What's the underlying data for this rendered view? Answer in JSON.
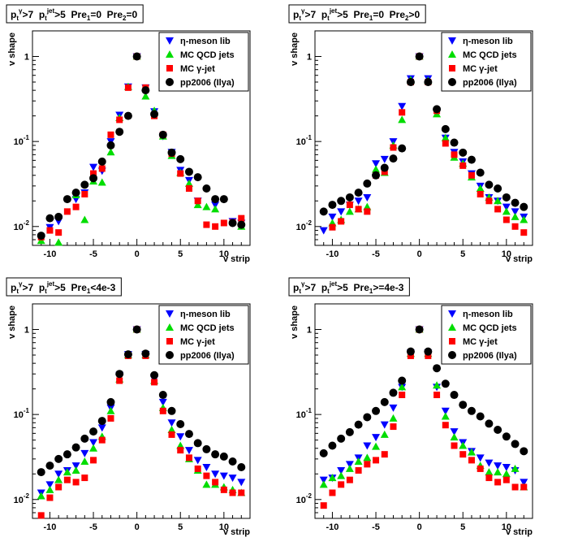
{
  "legend": {
    "entries": [
      {
        "key": "eta",
        "prefix": "η",
        "text": "-meson lib",
        "color": "#0000ff",
        "marker": "triangle-down"
      },
      {
        "key": "qcd",
        "prefix": "",
        "text": "MC QCD jets",
        "color": "#00dd00",
        "marker": "triangle-up"
      },
      {
        "key": "gam",
        "prefix": "MC ",
        "text": "γ-jet",
        "color": "#ff0000",
        "marker": "square"
      },
      {
        "key": "pp",
        "prefix": "",
        "text": "pp2006 (Ilya)",
        "color": "#000000",
        "marker": "circle"
      }
    ]
  },
  "chart_data": [
    {
      "type": "scatter",
      "title": "p_t^γ>7  p_t^jet>5  Pre_1=0  Pre_2=0",
      "xlabel": "v strip",
      "ylabel": "v shape",
      "yscale": "log",
      "xlim": [
        -12,
        13
      ],
      "ylim": [
        0.006,
        2.0
      ],
      "xticks": [
        -10,
        -5,
        0,
        5,
        10
      ],
      "ytick_labels": [
        "10^-2",
        "10^-1",
        "1"
      ],
      "x": [
        -11,
        -10,
        -9,
        -8,
        -7,
        -6,
        -5,
        -4,
        -3,
        -2,
        -1,
        0,
        1,
        2,
        3,
        4,
        5,
        6,
        7,
        8,
        9,
        10,
        11,
        12
      ],
      "series": [
        {
          "name": "η-meson lib",
          "key": "eta",
          "values": [
            0.0075,
            0.0098,
            0.0115,
            null,
            0.021,
            0.025,
            0.05,
            0.045,
            0.1,
            0.205,
            0.44,
            1.0,
            0.43,
            0.225,
            0.115,
            0.075,
            0.046,
            0.035,
            0.02,
            null,
            0.018,
            null,
            0.0115,
            0.011
          ]
        },
        {
          "name": "MC QCD jets",
          "key": "qcd",
          "values": [
            0.0068,
            null,
            0.0065,
            null,
            0.0235,
            0.012,
            0.034,
            0.033,
            0.075,
            0.19,
            0.44,
            1.0,
            0.34,
            0.23,
            0.115,
            0.068,
            0.043,
            0.032,
            0.018,
            0.017,
            0.016,
            null,
            null,
            0.01
          ]
        },
        {
          "name": "MC γ-jet",
          "key": "gam",
          "values": [
            0.0075,
            0.009,
            0.0085,
            0.015,
            0.017,
            0.024,
            0.042,
            0.048,
            0.12,
            0.18,
            0.43,
            1.0,
            0.43,
            0.2,
            0.12,
            0.072,
            0.042,
            0.028,
            0.02,
            0.0105,
            0.01,
            0.011,
            0.0112,
            0.0125
          ]
        },
        {
          "name": "pp2006 (Ilya)",
          "key": "pp",
          "values": [
            0.0078,
            0.0125,
            0.013,
            0.021,
            0.025,
            0.031,
            0.037,
            0.058,
            0.09,
            0.13,
            0.2,
            1.0,
            0.4,
            0.21,
            0.12,
            0.074,
            0.062,
            0.044,
            0.038,
            0.028,
            0.021,
            0.021,
            0.011,
            0.0105
          ]
        }
      ]
    },
    {
      "type": "scatter",
      "title": "p_t^γ>7  p_t^jet>5  Pre_1=0  Pre_2>0",
      "xlabel": "v strip",
      "ylabel": "v shape",
      "yscale": "log",
      "xlim": [
        -12,
        13
      ],
      "ylim": [
        0.006,
        2.0
      ],
      "xticks": [
        -10,
        -5,
        0,
        5,
        10
      ],
      "ytick_labels": [
        "10^-2",
        "10^-1",
        "1"
      ],
      "x": [
        -11,
        -10,
        -9,
        -8,
        -7,
        -6,
        -5,
        -4,
        -3,
        -2,
        -1,
        0,
        1,
        2,
        3,
        4,
        5,
        6,
        7,
        8,
        9,
        10,
        11,
        12
      ],
      "series": [
        {
          "name": "η-meson lib",
          "key": "eta",
          "values": [
            0.009,
            0.013,
            0.015,
            0.018,
            0.02,
            0.022,
            0.055,
            0.062,
            0.1,
            0.26,
            0.55,
            1.0,
            0.55,
            0.22,
            0.11,
            0.075,
            0.058,
            0.042,
            0.03,
            0.022,
            0.02,
            0.017,
            0.015,
            0.013
          ]
        },
        {
          "name": "MC QCD jets",
          "key": "qcd",
          "values": [
            null,
            0.011,
            0.012,
            0.015,
            0.016,
            0.017,
            0.047,
            0.043,
            0.09,
            0.18,
            0.53,
            1.0,
            0.52,
            0.21,
            0.11,
            0.065,
            0.055,
            0.038,
            0.028,
            0.022,
            0.02,
            0.015,
            0.013,
            0.012
          ]
        },
        {
          "name": "MC γ-jet",
          "key": "gam",
          "values": [
            0.0058,
            0.0098,
            0.0115,
            0.018,
            0.016,
            0.015,
            0.04,
            0.044,
            0.085,
            0.22,
            0.5,
            1.0,
            0.5,
            0.23,
            0.095,
            0.07,
            0.052,
            0.04,
            0.024,
            0.02,
            0.016,
            0.012,
            0.01,
            0.0085
          ]
        },
        {
          "name": "pp2006 (Ilya)",
          "key": "pp",
          "values": [
            0.015,
            0.018,
            0.02,
            0.022,
            0.025,
            0.032,
            0.04,
            0.049,
            0.063,
            0.083,
            0.5,
            1.0,
            0.5,
            0.24,
            0.14,
            0.097,
            0.074,
            0.061,
            0.043,
            0.031,
            0.028,
            0.022,
            0.019,
            0.017
          ]
        }
      ]
    },
    {
      "type": "scatter",
      "title": "p_t^γ>7  p_t^jet>5  Pre_1<4e-3",
      "xlabel": "v strip",
      "ylabel": "v shape",
      "yscale": "log",
      "xlim": [
        -12,
        13
      ],
      "ylim": [
        0.006,
        2.0
      ],
      "xticks": [
        -10,
        -5,
        0,
        5,
        10
      ],
      "ytick_labels": [
        "10^-2",
        "10^-1",
        "1"
      ],
      "x": [
        -11,
        -10,
        -9,
        -8,
        -7,
        -6,
        -5,
        -4,
        -3,
        -2,
        -1,
        0,
        1,
        2,
        3,
        4,
        5,
        6,
        7,
        8,
        9,
        10,
        11,
        12
      ],
      "series": [
        {
          "name": "η-meson lib",
          "key": "eta",
          "values": [
            0.012,
            0.015,
            0.02,
            0.022,
            0.025,
            0.035,
            0.047,
            0.07,
            0.12,
            0.29,
            0.51,
            1.0,
            0.51,
            0.26,
            0.14,
            0.08,
            0.055,
            0.038,
            0.029,
            0.024,
            0.02,
            0.019,
            0.018,
            0.016
          ]
        },
        {
          "name": "MC QCD jets",
          "key": "qcd",
          "values": [
            0.011,
            0.013,
            0.017,
            0.021,
            0.022,
            0.028,
            0.04,
            0.055,
            0.11,
            0.26,
            0.5,
            1.0,
            0.5,
            0.25,
            0.12,
            0.066,
            0.043,
            0.03,
            0.022,
            0.015,
            0.015,
            0.014,
            0.013,
            0.012
          ]
        },
        {
          "name": "MC γ-jet",
          "key": "gam",
          "values": [
            0.0065,
            0.0105,
            0.014,
            0.017,
            0.016,
            0.018,
            0.029,
            0.05,
            0.09,
            0.25,
            0.49,
            1.0,
            0.49,
            0.24,
            0.11,
            0.058,
            0.038,
            0.031,
            0.023,
            0.019,
            0.016,
            0.013,
            0.012,
            0.012
          ]
        },
        {
          "name": "pp2006 (Ilya)",
          "key": "pp",
          "values": [
            0.021,
            0.025,
            0.03,
            0.034,
            0.041,
            0.052,
            0.063,
            0.084,
            0.14,
            0.3,
            0.51,
            1.0,
            0.52,
            0.29,
            0.17,
            0.11,
            0.077,
            0.059,
            0.046,
            0.039,
            0.034,
            0.032,
            0.028,
            0.024
          ]
        }
      ]
    },
    {
      "type": "scatter",
      "title": "p_t^γ>7  p_t^jet>5  Pre_1>=4e-3",
      "xlabel": "v strip",
      "ylabel": "v shape",
      "yscale": "log",
      "xlim": [
        -12,
        13
      ],
      "ylim": [
        0.006,
        2.0
      ],
      "xticks": [
        -10,
        -5,
        0,
        5,
        10
      ],
      "ytick_labels": [
        "10^-2",
        "10^-1",
        "1"
      ],
      "x": [
        -11,
        -10,
        -9,
        -8,
        -7,
        -6,
        -5,
        -4,
        -3,
        -2,
        -1,
        0,
        1,
        2,
        3,
        4,
        5,
        6,
        7,
        8,
        9,
        10,
        11,
        12
      ],
      "series": [
        {
          "name": "η-meson lib",
          "key": "eta",
          "values": [
            0.017,
            0.018,
            0.022,
            0.026,
            0.031,
            0.043,
            0.054,
            0.076,
            0.12,
            0.21,
            0.53,
            1.0,
            0.53,
            0.21,
            0.11,
            0.063,
            0.047,
            0.037,
            0.031,
            0.027,
            0.025,
            0.024,
            0.022,
            0.016
          ]
        },
        {
          "name": "MC QCD jets",
          "key": "qcd",
          "values": [
            0.015,
            0.018,
            0.019,
            0.023,
            0.028,
            0.031,
            0.042,
            0.058,
            0.09,
            0.21,
            0.52,
            1.0,
            0.52,
            0.22,
            0.095,
            0.054,
            0.043,
            0.036,
            0.025,
            0.021,
            0.021,
            0.02,
            0.023,
            0.014
          ]
        },
        {
          "name": "MC γ-jet",
          "key": "gam",
          "values": [
            0.0085,
            0.012,
            0.015,
            0.017,
            0.022,
            0.026,
            0.029,
            0.034,
            0.072,
            0.17,
            0.49,
            1.0,
            0.49,
            0.17,
            0.075,
            0.043,
            0.034,
            0.029,
            0.023,
            0.018,
            0.016,
            0.017,
            0.014,
            0.014
          ]
        },
        {
          "name": "pp2006 (Ilya)",
          "key": "pp",
          "values": [
            0.035,
            0.043,
            0.052,
            0.062,
            0.076,
            0.093,
            0.11,
            0.14,
            0.18,
            0.25,
            0.55,
            1.0,
            0.55,
            0.35,
            0.23,
            0.17,
            0.13,
            0.11,
            0.095,
            0.078,
            0.066,
            0.055,
            0.045,
            0.037
          ]
        }
      ]
    }
  ]
}
